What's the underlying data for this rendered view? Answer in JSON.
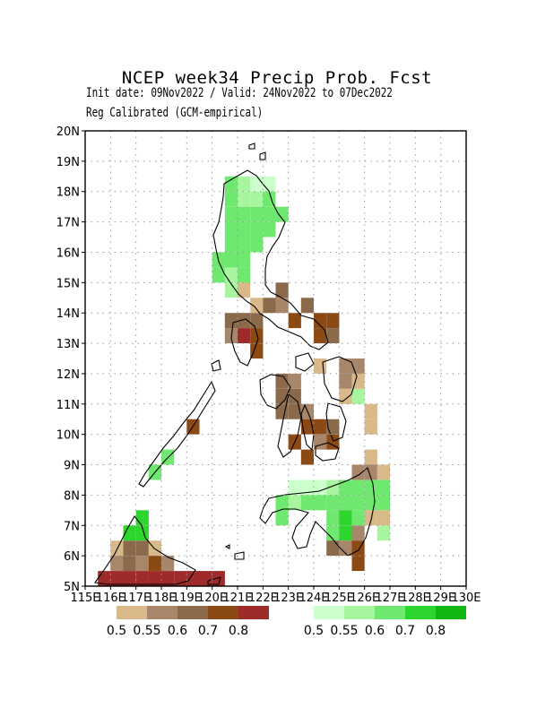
{
  "header": {
    "title": "NCEP week34 Precip Prob. Fcst",
    "subtitle": "Init date: 09Nov2022 / Valid: 24Nov2022 to 07Dec2022",
    "method": "Reg Calibrated (GCM-empirical)"
  },
  "map": {
    "lon_range": [
      115,
      130
    ],
    "lat_range": [
      5,
      20
    ],
    "x_ticks": [
      "115E",
      "116E",
      "117E",
      "118E",
      "119E",
      "120E",
      "121E",
      "122E",
      "123E",
      "124E",
      "125E",
      "126E",
      "127E",
      "128E",
      "129E",
      "130E"
    ],
    "y_ticks": [
      "5N",
      "6N",
      "7N",
      "8N",
      "9N",
      "10N",
      "11N",
      "12N",
      "13N",
      "14N",
      "15N",
      "16N",
      "17N",
      "18N",
      "19N",
      "20N"
    ]
  },
  "legend_dry": {
    "colors": [
      "#d9b98a",
      "#a8866a",
      "#8a6a4a",
      "#8b4a14",
      "#9e2a2a"
    ],
    "labels": [
      "0.5",
      "0.55",
      "0.6",
      "0.7",
      "0.8"
    ]
  },
  "legend_wet": {
    "colors": [
      "#ccffcc",
      "#a8f5a0",
      "#6fe86f",
      "#2dd62d",
      "#12b812"
    ],
    "labels": [
      "0.5",
      "0.55",
      "0.6",
      "0.7",
      "0.8"
    ]
  },
  "colors": {
    "grid": "#999999",
    "coast": "#000000"
  },
  "chart_data": {
    "type": "heatmap",
    "title": "NCEP week34 Precip Prob. Fcst",
    "cell_deg": 0.5,
    "cells": [
      {
        "lon": 119.5,
        "lat": 5.0,
        "cat": "dry",
        "level": 5
      },
      {
        "lon": 119.0,
        "lat": 5.0,
        "cat": "dry",
        "level": 5
      },
      {
        "lon": 118.5,
        "lat": 5.0,
        "cat": "dry",
        "level": 5
      },
      {
        "lon": 118.0,
        "lat": 5.0,
        "cat": "dry",
        "level": 5
      },
      {
        "lon": 117.5,
        "lat": 5.0,
        "cat": "dry",
        "level": 5
      },
      {
        "lon": 117.0,
        "lat": 5.0,
        "cat": "dry",
        "level": 5
      },
      {
        "lon": 116.5,
        "lat": 5.0,
        "cat": "dry",
        "level": 5
      },
      {
        "lon": 116.0,
        "lat": 5.0,
        "cat": "dry",
        "level": 5
      },
      {
        "lon": 115.5,
        "lat": 5.0,
        "cat": "dry",
        "level": 5
      },
      {
        "lon": 120.0,
        "lat": 5.0,
        "cat": "dry",
        "level": 5
      },
      {
        "lon": 116.0,
        "lat": 5.5,
        "cat": "dry",
        "level": 2
      },
      {
        "lon": 116.5,
        "lat": 5.5,
        "cat": "dry",
        "level": 3
      },
      {
        "lon": 117.0,
        "lat": 5.5,
        "cat": "dry",
        "level": 2
      },
      {
        "lon": 117.5,
        "lat": 5.5,
        "cat": "dry",
        "level": 4
      },
      {
        "lon": 118.0,
        "lat": 5.5,
        "cat": "dry",
        "level": 2
      },
      {
        "lon": 116.0,
        "lat": 6.0,
        "cat": "dry",
        "level": 1
      },
      {
        "lon": 116.5,
        "lat": 6.0,
        "cat": "dry",
        "level": 3
      },
      {
        "lon": 117.0,
        "lat": 6.0,
        "cat": "dry",
        "level": 3
      },
      {
        "lon": 117.5,
        "lat": 6.0,
        "cat": "dry",
        "level": 1
      },
      {
        "lon": 116.5,
        "lat": 6.5,
        "cat": "wet",
        "level": 4
      },
      {
        "lon": 117.0,
        "lat": 6.5,
        "cat": "wet",
        "level": 4
      },
      {
        "lon": 117.0,
        "lat": 7.0,
        "cat": "wet",
        "level": 4
      },
      {
        "lon": 117.5,
        "lat": 8.5,
        "cat": "wet",
        "level": 3
      },
      {
        "lon": 118.0,
        "lat": 9.0,
        "cat": "wet",
        "level": 3
      },
      {
        "lon": 119.0,
        "lat": 10.0,
        "cat": "dry",
        "level": 4
      },
      {
        "lon": 120.5,
        "lat": 13.0,
        "cat": "dry",
        "level": 2
      },
      {
        "lon": 121.0,
        "lat": 13.0,
        "cat": "dry",
        "level": 5
      },
      {
        "lon": 121.5,
        "lat": 13.0,
        "cat": "dry",
        "level": 4
      },
      {
        "lon": 121.5,
        "lat": 12.5,
        "cat": "dry",
        "level": 4
      },
      {
        "lon": 121.0,
        "lat": 13.5,
        "cat": "dry",
        "level": 3
      },
      {
        "lon": 121.5,
        "lat": 13.5,
        "cat": "dry",
        "level": 3
      },
      {
        "lon": 120.5,
        "lat": 13.5,
        "cat": "dry",
        "level": 3
      },
      {
        "lon": 121.5,
        "lat": 14.0,
        "cat": "dry",
        "level": 1
      },
      {
        "lon": 122.0,
        "lat": 14.0,
        "cat": "dry",
        "level": 3
      },
      {
        "lon": 122.5,
        "lat": 14.0,
        "cat": "dry",
        "level": 2
      },
      {
        "lon": 123.0,
        "lat": 13.5,
        "cat": "dry",
        "level": 4
      },
      {
        "lon": 122.5,
        "lat": 14.5,
        "cat": "dry",
        "level": 3
      },
      {
        "lon": 123.5,
        "lat": 14.0,
        "cat": "dry",
        "level": 3
      },
      {
        "lon": 124.0,
        "lat": 13.5,
        "cat": "dry",
        "level": 4
      },
      {
        "lon": 124.5,
        "lat": 13.5,
        "cat": "dry",
        "level": 4
      },
      {
        "lon": 124.0,
        "lat": 13.0,
        "cat": "dry",
        "level": 4
      },
      {
        "lon": 124.5,
        "lat": 13.0,
        "cat": "dry",
        "level": 3
      },
      {
        "lon": 121.0,
        "lat": 14.5,
        "cat": "dry",
        "level": 1
      },
      {
        "lon": 120.5,
        "lat": 14.5,
        "cat": "wet",
        "level": 2
      },
      {
        "lon": 120.0,
        "lat": 15.0,
        "cat": "wet",
        "level": 3
      },
      {
        "lon": 120.5,
        "lat": 15.0,
        "cat": "wet",
        "level": 2
      },
      {
        "lon": 121.0,
        "lat": 15.0,
        "cat": "wet",
        "level": 3
      },
      {
        "lon": 120.0,
        "lat": 15.5,
        "cat": "wet",
        "level": 3
      },
      {
        "lon": 120.5,
        "lat": 15.5,
        "cat": "wet",
        "level": 3
      },
      {
        "lon": 121.0,
        "lat": 15.5,
        "cat": "wet",
        "level": 3
      },
      {
        "lon": 120.5,
        "lat": 16.0,
        "cat": "wet",
        "level": 3
      },
      {
        "lon": 121.0,
        "lat": 16.0,
        "cat": "wet",
        "level": 3
      },
      {
        "lon": 121.5,
        "lat": 16.0,
        "cat": "wet",
        "level": 3
      },
      {
        "lon": 120.5,
        "lat": 16.5,
        "cat": "wet",
        "level": 3
      },
      {
        "lon": 121.0,
        "lat": 16.5,
        "cat": "wet",
        "level": 3
      },
      {
        "lon": 121.5,
        "lat": 16.5,
        "cat": "wet",
        "level": 3
      },
      {
        "lon": 122.0,
        "lat": 16.5,
        "cat": "wet",
        "level": 3
      },
      {
        "lon": 120.5,
        "lat": 17.0,
        "cat": "wet",
        "level": 3
      },
      {
        "lon": 121.0,
        "lat": 17.0,
        "cat": "wet",
        "level": 3
      },
      {
        "lon": 121.5,
        "lat": 17.0,
        "cat": "wet",
        "level": 3
      },
      {
        "lon": 122.0,
        "lat": 17.0,
        "cat": "wet",
        "level": 3
      },
      {
        "lon": 122.5,
        "lat": 17.0,
        "cat": "wet",
        "level": 3
      },
      {
        "lon": 120.5,
        "lat": 17.5,
        "cat": "wet",
        "level": 3
      },
      {
        "lon": 121.0,
        "lat": 17.5,
        "cat": "wet",
        "level": 2
      },
      {
        "lon": 121.5,
        "lat": 17.5,
        "cat": "wet",
        "level": 2
      },
      {
        "lon": 122.0,
        "lat": 17.5,
        "cat": "wet",
        "level": 3
      },
      {
        "lon": 120.5,
        "lat": 18.0,
        "cat": "wet",
        "level": 3
      },
      {
        "lon": 121.0,
        "lat": 18.0,
        "cat": "wet",
        "level": 2
      },
      {
        "lon": 121.5,
        "lat": 18.0,
        "cat": "wet",
        "level": 1
      },
      {
        "lon": 122.0,
        "lat": 18.0,
        "cat": "wet",
        "level": 1
      },
      {
        "lon": 122.5,
        "lat": 11.0,
        "cat": "dry",
        "level": 3
      },
      {
        "lon": 122.5,
        "lat": 11.5,
        "cat": "dry",
        "level": 3
      },
      {
        "lon": 122.5,
        "lat": 10.5,
        "cat": "dry",
        "level": 3
      },
      {
        "lon": 123.0,
        "lat": 11.0,
        "cat": "dry",
        "level": 3
      },
      {
        "lon": 123.0,
        "lat": 10.5,
        "cat": "dry",
        "level": 3
      },
      {
        "lon": 123.0,
        "lat": 11.5,
        "cat": "dry",
        "level": 2
      },
      {
        "lon": 123.5,
        "lat": 10.5,
        "cat": "dry",
        "level": 2
      },
      {
        "lon": 123.5,
        "lat": 10.0,
        "cat": "dry",
        "level": 4
      },
      {
        "lon": 124.0,
        "lat": 10.0,
        "cat": "dry",
        "level": 4
      },
      {
        "lon": 124.5,
        "lat": 10.0,
        "cat": "dry",
        "level": 3
      },
      {
        "lon": 123.0,
        "lat": 9.5,
        "cat": "dry",
        "level": 4
      },
      {
        "lon": 124.0,
        "lat": 9.5,
        "cat": "dry",
        "level": 2
      },
      {
        "lon": 124.5,
        "lat": 9.5,
        "cat": "dry",
        "level": 4
      },
      {
        "lon": 123.5,
        "lat": 9.0,
        "cat": "dry",
        "level": 4
      },
      {
        "lon": 124.0,
        "lat": 12.0,
        "cat": "dry",
        "level": 1
      },
      {
        "lon": 125.0,
        "lat": 12.0,
        "cat": "dry",
        "level": 2
      },
      {
        "lon": 125.5,
        "lat": 12.0,
        "cat": "dry",
        "level": 2
      },
      {
        "lon": 125.0,
        "lat": 11.5,
        "cat": "dry",
        "level": 2
      },
      {
        "lon": 125.5,
        "lat": 11.5,
        "cat": "dry",
        "level": 1
      },
      {
        "lon": 125.0,
        "lat": 11.0,
        "cat": "dry",
        "level": 1
      },
      {
        "lon": 125.5,
        "lat": 11.0,
        "cat": "wet",
        "level": 2
      },
      {
        "lon": 126.0,
        "lat": 10.5,
        "cat": "dry",
        "level": 1
      },
      {
        "lon": 126.0,
        "lat": 10.0,
        "cat": "dry",
        "level": 1
      },
      {
        "lon": 126.0,
        "lat": 9.0,
        "cat": "dry",
        "level": 1
      },
      {
        "lon": 125.5,
        "lat": 8.5,
        "cat": "dry",
        "level": 2
      },
      {
        "lon": 126.0,
        "lat": 8.5,
        "cat": "dry",
        "level": 2
      },
      {
        "lon": 126.5,
        "lat": 8.5,
        "cat": "dry",
        "level": 1
      },
      {
        "lon": 123.0,
        "lat": 8.0,
        "cat": "wet",
        "level": 1
      },
      {
        "lon": 123.5,
        "lat": 8.0,
        "cat": "wet",
        "level": 1
      },
      {
        "lon": 124.0,
        "lat": 8.0,
        "cat": "wet",
        "level": 1
      },
      {
        "lon": 124.5,
        "lat": 8.0,
        "cat": "wet",
        "level": 2
      },
      {
        "lon": 125.0,
        "lat": 8.0,
        "cat": "wet",
        "level": 3
      },
      {
        "lon": 125.5,
        "lat": 8.0,
        "cat": "wet",
        "level": 3
      },
      {
        "lon": 126.0,
        "lat": 8.0,
        "cat": "wet",
        "level": 3
      },
      {
        "lon": 126.5,
        "lat": 8.0,
        "cat": "wet",
        "level": 3
      },
      {
        "lon": 122.5,
        "lat": 7.5,
        "cat": "wet",
        "level": 3
      },
      {
        "lon": 123.0,
        "lat": 7.5,
        "cat": "wet",
        "level": 2
      },
      {
        "lon": 123.5,
        "lat": 7.5,
        "cat": "wet",
        "level": 3
      },
      {
        "lon": 124.0,
        "lat": 7.5,
        "cat": "wet",
        "level": 3
      },
      {
        "lon": 124.5,
        "lat": 7.5,
        "cat": "wet",
        "level": 3
      },
      {
        "lon": 125.0,
        "lat": 7.5,
        "cat": "wet",
        "level": 3
      },
      {
        "lon": 125.5,
        "lat": 7.5,
        "cat": "wet",
        "level": 3
      },
      {
        "lon": 126.0,
        "lat": 7.5,
        "cat": "wet",
        "level": 3
      },
      {
        "lon": 126.5,
        "lat": 7.5,
        "cat": "wet",
        "level": 3
      },
      {
        "lon": 122.5,
        "lat": 7.0,
        "cat": "wet",
        "level": 3
      },
      {
        "lon": 124.5,
        "lat": 7.0,
        "cat": "wet",
        "level": 3
      },
      {
        "lon": 125.0,
        "lat": 7.0,
        "cat": "wet",
        "level": 4
      },
      {
        "lon": 125.5,
        "lat": 7.0,
        "cat": "wet",
        "level": 3
      },
      {
        "lon": 126.0,
        "lat": 7.0,
        "cat": "dry",
        "level": 1
      },
      {
        "lon": 126.5,
        "lat": 7.0,
        "cat": "dry",
        "level": 1
      },
      {
        "lon": 124.5,
        "lat": 6.5,
        "cat": "wet",
        "level": 3
      },
      {
        "lon": 125.0,
        "lat": 6.5,
        "cat": "wet",
        "level": 4
      },
      {
        "lon": 125.5,
        "lat": 6.5,
        "cat": "dry",
        "level": 2
      },
      {
        "lon": 126.5,
        "lat": 6.5,
        "cat": "wet",
        "level": 2
      },
      {
        "lon": 124.5,
        "lat": 6.0,
        "cat": "dry",
        "level": 3
      },
      {
        "lon": 125.0,
        "lat": 6.0,
        "cat": "dry",
        "level": 2
      },
      {
        "lon": 125.5,
        "lat": 6.0,
        "cat": "dry",
        "level": 4
      },
      {
        "lon": 125.5,
        "lat": 5.5,
        "cat": "dry",
        "level": 4
      }
    ]
  }
}
